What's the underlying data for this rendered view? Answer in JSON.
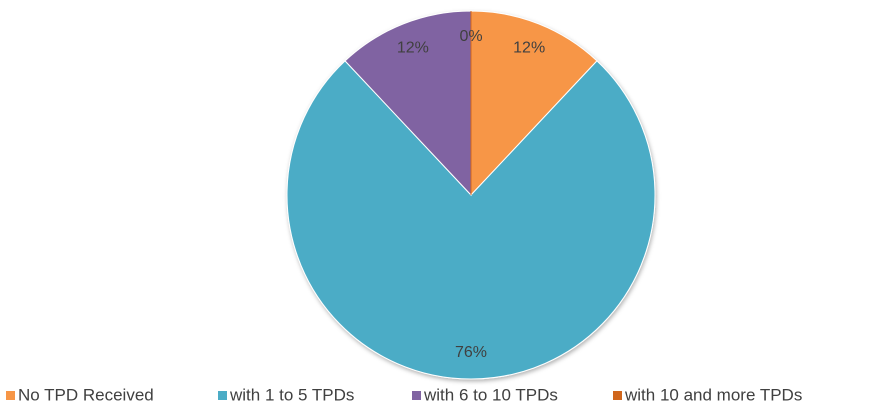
{
  "chart_data": {
    "type": "pie",
    "categories": [
      "No TPD Received",
      "with 1 to 5 TPDs",
      "with 6 to 10 TPDs",
      "with 10 and more TPDs"
    ],
    "values": [
      12,
      76,
      12,
      0
    ],
    "value_labels": [
      "12%",
      "76%",
      "12%",
      "0%"
    ],
    "colors": [
      "#f79646",
      "#4bacc6",
      "#8064a2",
      "#d0661c"
    ],
    "legend": "bottom"
  }
}
